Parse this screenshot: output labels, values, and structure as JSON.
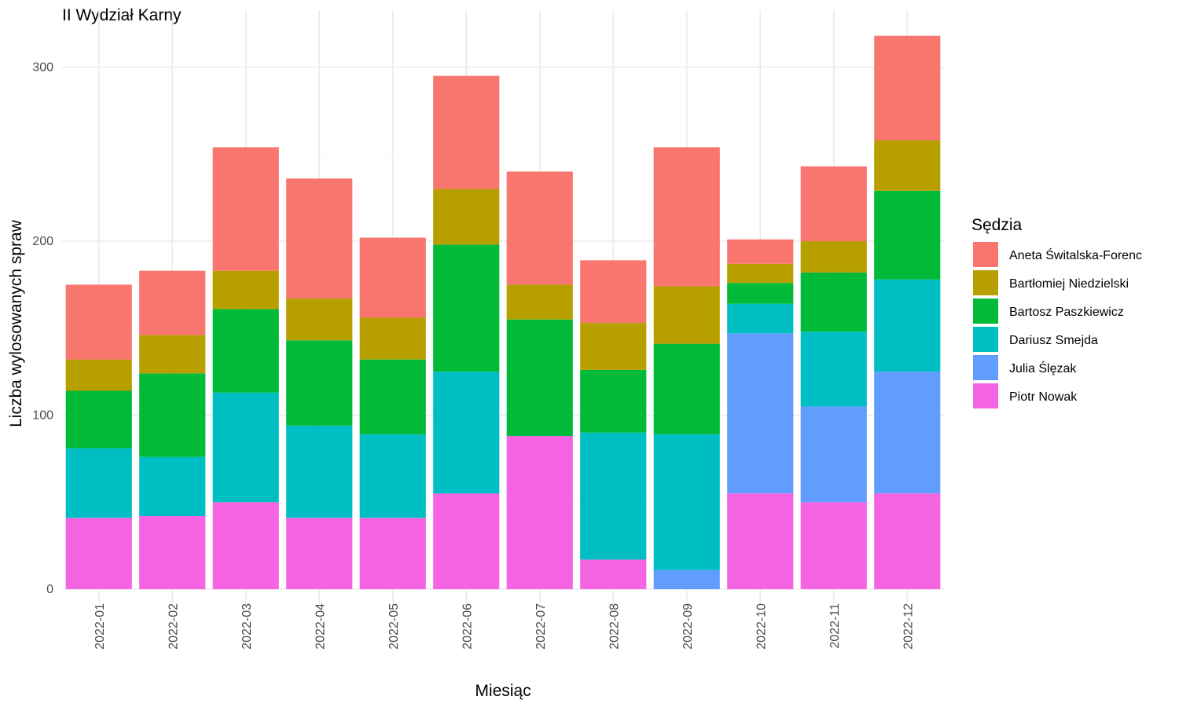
{
  "chart_data": {
    "type": "bar",
    "stacked": true,
    "title": "II Wydział Karny",
    "xlabel": "Miesiąc",
    "ylabel": "Liczba wylosowanych spraw",
    "ylim": [
      0,
      318
    ],
    "yticks": [
      0,
      100,
      200,
      300
    ],
    "grid": true,
    "legend_title": "Sędzia",
    "legend_position": "right",
    "categories": [
      "2022-01",
      "2022-02",
      "2022-03",
      "2022-04",
      "2022-05",
      "2022-06",
      "2022-07",
      "2022-08",
      "2022-09",
      "2022-10",
      "2022-11",
      "2022-12"
    ],
    "series": [
      {
        "name": "Piotr Nowak",
        "color": "#F564E3",
        "values": [
          41,
          42,
          50,
          41,
          41,
          55,
          88,
          17,
          0,
          55,
          50,
          55
        ]
      },
      {
        "name": "Julia Ślęzak",
        "color": "#619CFF",
        "values": [
          0,
          0,
          0,
          0,
          0,
          0,
          0,
          0,
          11,
          92,
          55,
          70
        ]
      },
      {
        "name": "Dariusz Smejda",
        "color": "#00BFC4",
        "values": [
          40,
          34,
          63,
          53,
          48,
          70,
          0,
          73,
          78,
          17,
          43,
          53
        ]
      },
      {
        "name": "Bartosz Paszkiewicz",
        "color": "#00BA38",
        "values": [
          33,
          48,
          48,
          49,
          43,
          73,
          67,
          36,
          52,
          12,
          34,
          51
        ]
      },
      {
        "name": "Bartłomiej Niedzielski",
        "color": "#B79F00",
        "values": [
          18,
          22,
          22,
          24,
          24,
          32,
          20,
          27,
          33,
          11,
          18,
          29
        ]
      },
      {
        "name": "Aneta Świtalska-Forenc",
        "color": "#F8766D",
        "values": [
          43,
          37,
          71,
          69,
          46,
          65,
          65,
          36,
          80,
          14,
          43,
          60
        ]
      }
    ],
    "legend_order": [
      "Aneta Świtalska-Forenc",
      "Bartłomiej Niedzielski",
      "Bartosz Paszkiewicz",
      "Dariusz Smejda",
      "Julia Ślęzak",
      "Piotr Nowak"
    ]
  }
}
